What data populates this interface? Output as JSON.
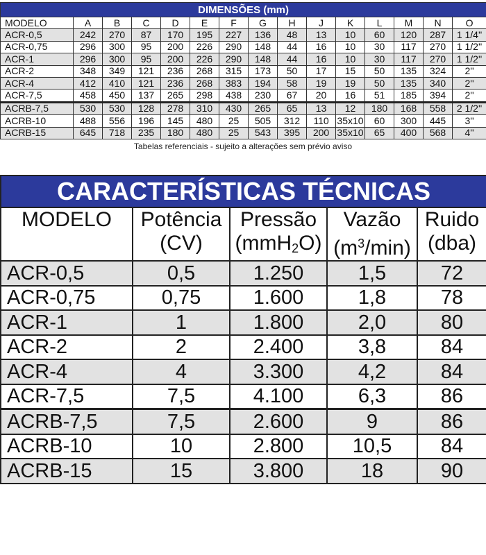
{
  "dimensions": {
    "title": "DIMENSÕES (mm)",
    "headers": [
      "MODELO",
      "A",
      "B",
      "C",
      "D",
      "E",
      "F",
      "G",
      "H",
      "J",
      "K",
      "L",
      "M",
      "N",
      "O"
    ],
    "rows": [
      [
        "ACR-0,5",
        "242",
        "270",
        "87",
        "170",
        "195",
        "227",
        "136",
        "48",
        "13",
        "10",
        "60",
        "120",
        "287",
        "1 1/4''"
      ],
      [
        "ACR-0,75",
        "296",
        "300",
        "95",
        "200",
        "226",
        "290",
        "148",
        "44",
        "16",
        "10",
        "30",
        "117",
        "270",
        "1 1/2''"
      ],
      [
        "ACR-1",
        "296",
        "300",
        "95",
        "200",
        "226",
        "290",
        "148",
        "44",
        "16",
        "10",
        "30",
        "117",
        "270",
        "1 1/2''"
      ],
      [
        "ACR-2",
        "348",
        "349",
        "121",
        "236",
        "268",
        "315",
        "173",
        "50",
        "17",
        "15",
        "50",
        "135",
        "324",
        "2''"
      ],
      [
        "ACR-4",
        "412",
        "410",
        "121",
        "236",
        "268",
        "383",
        "194",
        "58",
        "19",
        "19",
        "50",
        "135",
        "340",
        "2''"
      ],
      [
        "ACR-7,5",
        "458",
        "450",
        "137",
        "265",
        "298",
        "438",
        "230",
        "67",
        "20",
        "16",
        "51",
        "185",
        "394",
        "2''"
      ],
      [
        "ACRB-7,5",
        "530",
        "530",
        "128",
        "278",
        "310",
        "430",
        "265",
        "65",
        "13",
        "12",
        "180",
        "168",
        "558",
        "2 1/2''"
      ],
      [
        "ACRB-10",
        "488",
        "556",
        "196",
        "145",
        "480",
        "25",
        "505",
        "312",
        "110",
        "35x10",
        "60",
        "300",
        "445",
        "3''"
      ],
      [
        "ACRB-15",
        "645",
        "718",
        "235",
        "180",
        "480",
        "25",
        "543",
        "395",
        "200",
        "35x10",
        "65",
        "400",
        "568",
        "4''"
      ]
    ]
  },
  "caption": "Tabelas referenciais - sujeito a alterações sem prévio aviso",
  "technical": {
    "title": "CARACTERÍSTICAS TÉCNICAS",
    "headers": [
      {
        "line1": "MODELO",
        "line2": ""
      },
      {
        "line1": "Potência",
        "line2": "(CV)"
      },
      {
        "line1": "Pressão",
        "line2_pre": "(mmH",
        "line2_sub": "2",
        "line2_post": "O)"
      },
      {
        "line1": "Vazão",
        "line2_pre": "(m",
        "line2_sup": "3",
        "line2_post": "/min)"
      },
      {
        "line1": "Ruido",
        "line2": "(dba)"
      }
    ],
    "rows": [
      [
        "ACR-0,5",
        "0,5",
        "1.250",
        "1,5",
        "72"
      ],
      [
        "ACR-0,75",
        "0,75",
        "1.600",
        "1,8",
        "78"
      ],
      [
        "ACR-1",
        "1",
        "1.800",
        "2,0",
        "80"
      ],
      [
        "ACR-2",
        "2",
        "2.400",
        "3,8",
        "84"
      ],
      [
        "ACR-4",
        "4",
        "3.300",
        "4,2",
        "84"
      ],
      [
        "ACR-7,5",
        "7,5",
        "4.100",
        "6,3",
        "86"
      ],
      [
        "ACRB-7,5",
        "7,5",
        "2.600",
        "9",
        "86"
      ],
      [
        "ACRB-10",
        "10",
        "2.800",
        "10,5",
        "84"
      ],
      [
        "ACRB-15",
        "15",
        "3.800",
        "18",
        "90"
      ]
    ]
  },
  "colors": {
    "header_blue": "#2c3a9c",
    "row_gray": "#e2e2e2"
  }
}
